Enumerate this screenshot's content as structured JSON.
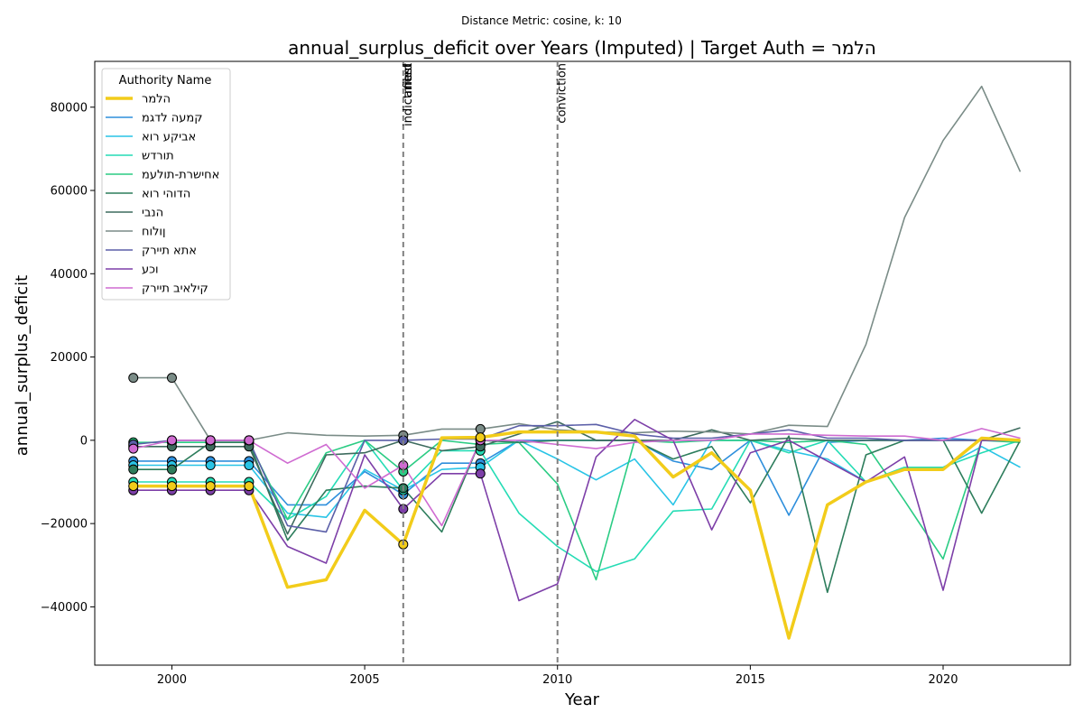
{
  "figure": {
    "suptitle": "Distance Metric: cosine, k: 10"
  },
  "chart_data": {
    "type": "line",
    "title": "annual_surplus_deficit over Years (Imputed) | Target Auth = הלמר",
    "xlabel": "Year",
    "ylabel": "annual_surplus_deficit",
    "xlim": [
      1998,
      2023.3
    ],
    "ylim": [
      -54000,
      91000
    ],
    "x_ticks": [
      2000,
      2005,
      2010,
      2015,
      2020
    ],
    "y_ticks": [
      -40000,
      -20000,
      0,
      20000,
      40000,
      60000,
      80000
    ],
    "x_tick_labels": [
      "2000",
      "2005",
      "2010",
      "2015",
      "2020"
    ],
    "y_tick_labels": [
      "−40000",
      "−20000",
      "0",
      "20000",
      "40000",
      "60000",
      "80000"
    ],
    "grid": false,
    "legend": {
      "title": "Authority Name",
      "placement": "upper-left"
    },
    "events": [
      {
        "year": 2006,
        "labels": [
          "indictment",
          "arrest",
          "filed"
        ]
      },
      {
        "year": 2010,
        "labels": [
          "conviction"
        ]
      }
    ],
    "x": [
      1999,
      2000,
      2001,
      2002,
      2003,
      2004,
      2005,
      2006,
      2007,
      2008,
      2009,
      2010,
      2011,
      2012,
      2013,
      2014,
      2015,
      2016,
      2017,
      2018,
      2019,
      2020,
      2021,
      2022
    ],
    "series": [
      {
        "name": "הלמר",
        "color": "#f2cc1a",
        "target": true,
        "values": [
          -11000,
          -11000,
          -11000,
          -11000,
          -35300,
          -33500,
          -16800,
          -25000,
          600,
          700,
          2000,
          2000,
          2000,
          1000,
          -8800,
          -3000,
          -12000,
          -47500,
          -15500,
          -10000,
          -7000,
          -7000,
          500,
          0
        ],
        "imputed": [
          1999,
          2000,
          2001,
          2002,
          2006,
          2008
        ]
      },
      {
        "name": "קמעה לדגמ",
        "color": "#2e8fdc",
        "values": [
          -5000,
          -5000,
          -5000,
          -5000,
          -15500,
          -15500,
          -7500,
          -13000,
          -5500,
          -5500,
          0,
          0,
          0,
          0,
          -5000,
          -7000,
          0,
          -18000,
          -500,
          0,
          0,
          500,
          0,
          0
        ],
        "imputed": [
          1999,
          2000,
          2001,
          2002,
          2006,
          2008
        ]
      },
      {
        "name": "אביקע רוא",
        "color": "#29c4e6",
        "values": [
          -6000,
          -6000,
          -6000,
          -6000,
          -17500,
          -18500,
          -7000,
          -12000,
          -7000,
          -6500,
          0,
          -4500,
          -9500,
          -4500,
          -15500,
          0,
          0,
          -2500,
          -4500,
          -10000,
          -6500,
          -6500,
          -1500,
          -6500
        ],
        "imputed": [
          1999,
          2000,
          2001,
          2002,
          2006,
          2008
        ]
      },
      {
        "name": "תורדש",
        "color": "#25dcb5",
        "values": [
          -10000,
          -10000,
          -10000,
          -10000,
          -19000,
          -13500,
          0,
          -12000,
          -2500,
          -2500,
          -17500,
          -25500,
          -31500,
          -28500,
          -17000,
          -16500,
          0,
          -3000,
          0,
          -10000,
          -6500,
          -6500,
          -3000,
          0
        ],
        "imputed": [
          1999,
          2000,
          2001,
          2002,
          2006,
          2008
        ]
      },
      {
        "name": "אחישרת-תולעמ",
        "color": "#2bcc84",
        "values": [
          -500,
          -500,
          -500,
          -500,
          -19000,
          -3000,
          0,
          -7500,
          0,
          -1000,
          -500,
          -10500,
          -33500,
          0,
          -500,
          0,
          0,
          -500,
          0,
          -1000,
          -14500,
          -28500,
          0,
          -500
        ],
        "imputed": [
          1999,
          2000,
          2001,
          2002,
          2006,
          2008
        ]
      },
      {
        "name": "הדוהי רוא",
        "color": "#2d7d5c",
        "values": [
          -7000,
          -7000,
          -500,
          -500,
          -24000,
          -12000,
          -11000,
          -11500,
          -22000,
          0,
          -500,
          0,
          0,
          0,
          -4500,
          -1500,
          -15000,
          1000,
          -36500,
          -3500,
          0,
          0,
          -17500,
          0
        ],
        "imputed": [
          1999,
          2000,
          2001,
          2002,
          2006,
          2008
        ]
      },
      {
        "name": "הנבי",
        "color": "#3d6b5e",
        "values": [
          -1500,
          -1500,
          -1500,
          -1500,
          -22500,
          -3500,
          -3000,
          0,
          -2500,
          -1500,
          1500,
          4500,
          0,
          0,
          0,
          2500,
          0,
          500,
          0,
          0,
          0,
          0,
          0,
          3000
        ],
        "imputed": [
          1999,
          2000,
          2001,
          2002,
          2006,
          2008
        ]
      },
      {
        "name": "ןולוח",
        "color": "#7a8c87",
        "values": [
          15000,
          15000,
          0,
          0,
          1800,
          1200,
          1000,
          1200,
          2700,
          2700,
          4000,
          2500,
          2000,
          1800,
          2200,
          2000,
          1500,
          3600,
          3300,
          23000,
          53500,
          72000,
          85000,
          64500
        ],
        "imputed": [
          1999,
          2000,
          2001,
          2002,
          2006,
          2008
        ]
      },
      {
        "name": "אתא תיירק",
        "color": "#5b5fa8",
        "values": [
          -1000,
          0,
          0,
          0,
          -20500,
          -22000,
          0,
          0,
          300,
          300,
          3500,
          3500,
          3800,
          1500,
          500,
          500,
          1500,
          2500,
          500,
          500,
          0,
          0,
          0,
          0
        ],
        "imputed": [
          1999,
          2000,
          2001,
          2002,
          2006,
          2008
        ]
      },
      {
        "name": "וכע",
        "color": "#7d3fa8",
        "values": [
          -12000,
          -12000,
          -12000,
          -12000,
          -25500,
          -29500,
          -3500,
          -16500,
          -8000,
          -8000,
          -38500,
          -34500,
          -4000,
          5000,
          0,
          -21500,
          -3000,
          0,
          -5000,
          -10000,
          -4000,
          -36000,
          0,
          0
        ],
        "imputed": [
          1999,
          2000,
          2001,
          2002,
          2006,
          2008
        ]
      },
      {
        "name": "קילאיב תיירק",
        "color": "#cf6bd1",
        "values": [
          -2000,
          0,
          0,
          0,
          -5500,
          -1000,
          -11500,
          -6000,
          -20500,
          0,
          0,
          -1000,
          -2000,
          -500,
          0,
          0,
          1500,
          1500,
          1200,
          1000,
          1000,
          0,
          2800,
          500
        ],
        "imputed": [
          1999,
          2000,
          2001,
          2002,
          2006,
          2008
        ]
      }
    ]
  }
}
